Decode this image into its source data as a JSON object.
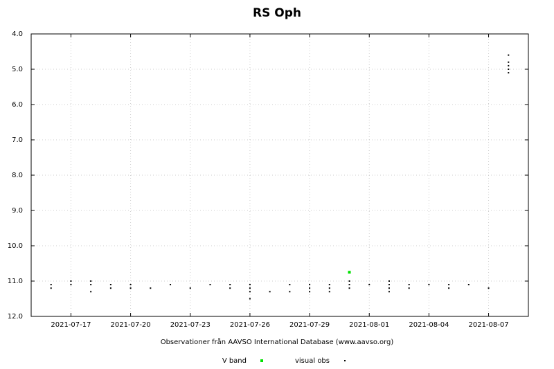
{
  "chart_data": {
    "type": "scatter",
    "title": "RS Oph",
    "x_label": "Observationer från AAVSO International Database (www.aavso.org)",
    "y_inverted": true,
    "grid": true,
    "legend": "bottom",
    "xlim": [
      "2021-07-15",
      "2021-08-09"
    ],
    "xticks": [
      "2021-07-17",
      "2021-07-20",
      "2021-07-23",
      "2021-07-26",
      "2021-07-29",
      "2021-08-01",
      "2021-08-04",
      "2021-08-07"
    ],
    "ylim": [
      4,
      12
    ],
    "yticks": [
      {
        "value": 4,
        "label": "4.0"
      },
      {
        "value": 5,
        "label": "5.0"
      },
      {
        "value": 6,
        "label": "6.0"
      },
      {
        "value": 7,
        "label": "7.0"
      },
      {
        "value": 8,
        "label": "8.0"
      },
      {
        "value": 9,
        "label": "9.0"
      },
      {
        "value": 10,
        "label": "10.0"
      },
      {
        "value": 11,
        "label": "11.0"
      },
      {
        "value": 12,
        "label": "12.0"
      }
    ],
    "series": [
      {
        "name": "V band",
        "color": "#00e000",
        "x": [
          "2021-07-31"
        ],
        "values": [
          10.75
        ]
      },
      {
        "name": "visual obs",
        "color": "#000000",
        "x": [
          "2021-07-16",
          "2021-07-16",
          "2021-07-17",
          "2021-07-17",
          "2021-07-18",
          "2021-07-18",
          "2021-07-18",
          "2021-07-19",
          "2021-07-19",
          "2021-07-20",
          "2021-07-20",
          "2021-07-21",
          "2021-07-22",
          "2021-07-23",
          "2021-07-24",
          "2021-07-25",
          "2021-07-25",
          "2021-07-26",
          "2021-07-26",
          "2021-07-26",
          "2021-07-26",
          "2021-07-27",
          "2021-07-28",
          "2021-07-28",
          "2021-07-29",
          "2021-07-29",
          "2021-07-29",
          "2021-07-30",
          "2021-07-30",
          "2021-07-30",
          "2021-07-31",
          "2021-07-31",
          "2021-07-31",
          "2021-08-01",
          "2021-08-02",
          "2021-08-02",
          "2021-08-02",
          "2021-08-02",
          "2021-08-03",
          "2021-08-03",
          "2021-08-04",
          "2021-08-05",
          "2021-08-05",
          "2021-08-06",
          "2021-08-07",
          "2021-08-08",
          "2021-08-08",
          "2021-08-08",
          "2021-08-08",
          "2021-08-08"
        ],
        "values": [
          11.1,
          11.2,
          11.0,
          11.1,
          11.0,
          11.1,
          11.3,
          11.1,
          11.2,
          11.2,
          11.1,
          11.2,
          11.1,
          11.2,
          11.1,
          11.1,
          11.2,
          11.1,
          11.2,
          11.3,
          11.5,
          11.3,
          11.1,
          11.3,
          11.2,
          11.3,
          11.1,
          11.3,
          11.2,
          11.1,
          11.0,
          11.1,
          11.2,
          11.1,
          11.0,
          11.1,
          11.2,
          11.3,
          11.1,
          11.2,
          11.1,
          11.2,
          11.1,
          11.1,
          11.2,
          5.1,
          5.0,
          4.9,
          4.8,
          4.6
        ]
      }
    ]
  }
}
